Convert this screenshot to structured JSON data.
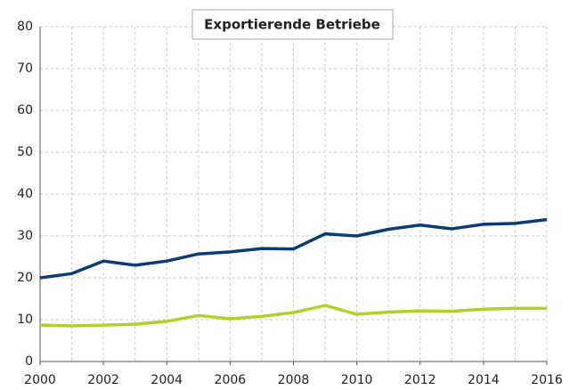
{
  "chart_data": {
    "type": "line",
    "title": "Exportierende Betriebe",
    "x": [
      2000,
      2001,
      2002,
      2003,
      2004,
      2005,
      2006,
      2007,
      2008,
      2009,
      2010,
      2011,
      2012,
      2013,
      2014,
      2015,
      2016
    ],
    "series": [
      {
        "color": "#0b3c72",
        "values": [
          20,
          21,
          24,
          23,
          24,
          25.7,
          26.2,
          27,
          26.9,
          30.5,
          30,
          31.6,
          32.6,
          31.7,
          32.8,
          33,
          33.9
        ]
      },
      {
        "color": "#b5cf2a",
        "values": [
          8.7,
          8.5,
          8.7,
          8.9,
          9.6,
          11,
          10.2,
          10.8,
          11.7,
          13.4,
          11.3,
          11.8,
          12.1,
          12,
          12.5,
          12.7,
          12.7
        ]
      }
    ],
    "xlim": [
      2000,
      2016
    ],
    "xticks": [
      2000,
      2002,
      2004,
      2006,
      2008,
      2010,
      2012,
      2014,
      2016
    ],
    "ylim": [
      0,
      80
    ],
    "yticks": [
      0,
      10,
      20,
      30,
      40,
      50,
      60,
      70,
      80
    ],
    "grid": true
  }
}
